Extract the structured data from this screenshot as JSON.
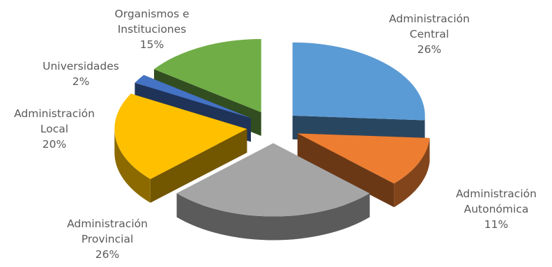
{
  "chart_data": {
    "type": "pie",
    "title": "",
    "slices": [
      {
        "label_lines": [
          "Administración",
          "Central"
        ],
        "value": 26,
        "value_text": "26%",
        "color": "#5b9bd5"
      },
      {
        "label_lines": [
          "Administración",
          "Autonómica"
        ],
        "value": 11,
        "value_text": "11%",
        "color": "#ed7d31"
      },
      {
        "label_lines": [
          "Administración",
          "Provincial"
        ],
        "value": 26,
        "value_text": "26%",
        "color": "#a5a5a5"
      },
      {
        "label_lines": [
          "Administración",
          "Local"
        ],
        "value": 20,
        "value_text": "20%",
        "color": "#ffc000"
      },
      {
        "label_lines": [
          "Universidades"
        ],
        "value": 2,
        "value_text": "2%",
        "color": "#4472c4"
      },
      {
        "label_lines": [
          "Organismos e",
          "Instituciones"
        ],
        "value": 15,
        "value_text": "15%",
        "color": "#70ad47"
      }
    ]
  }
}
